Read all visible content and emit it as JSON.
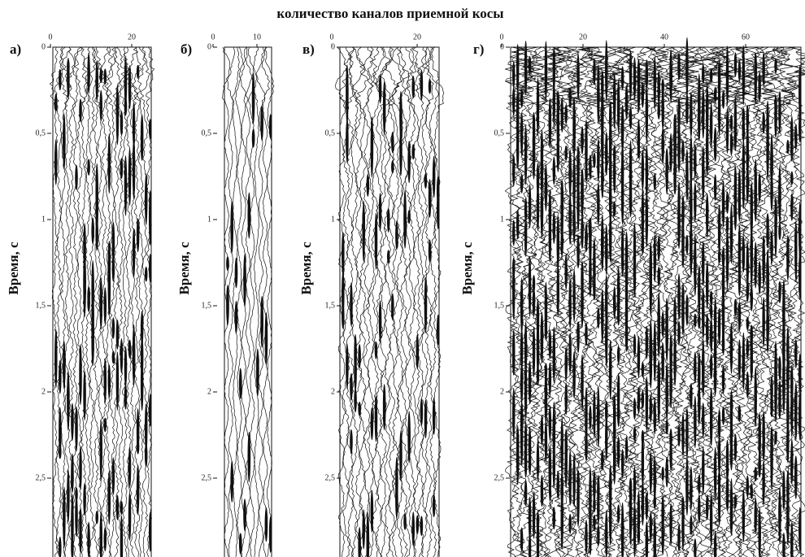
{
  "title": "количество каналов приемной косы",
  "panels": [
    {
      "label": "а)",
      "y_label": "Время, с",
      "x_ticks": [
        0,
        20
      ],
      "y_ticks": [
        0,
        {
          "value": 0.5,
          "label": "0,5"
        },
        1,
        {
          "value": 1.5,
          "label": "1,5"
        },
        2,
        {
          "value": 2.5,
          "label": "2,5"
        }
      ]
    },
    {
      "label": "б)",
      "y_label": "Время, с",
      "x_ticks": [
        0,
        10
      ],
      "y_ticks": [
        0,
        {
          "value": 0.5,
          "label": "0,5"
        },
        1,
        {
          "value": 1.5,
          "label": "1,5"
        },
        2,
        {
          "value": 2.5,
          "label": "2,5"
        }
      ]
    },
    {
      "label": "в)",
      "y_label": "Время, с",
      "x_ticks": [
        0,
        20
      ],
      "y_ticks": [
        0,
        {
          "value": 0.5,
          "label": "0,5"
        },
        1,
        {
          "value": 1.5,
          "label": "1,5"
        },
        2,
        {
          "value": 2.5,
          "label": "2,5"
        }
      ]
    },
    {
      "label": "г)",
      "y_label": "Время, с",
      "x_ticks": [
        0,
        20,
        40,
        60
      ],
      "y_ticks": [
        0,
        {
          "value": 0.5,
          "label": "0,5"
        },
        1,
        {
          "value": 1.5,
          "label": "1,5"
        },
        2,
        {
          "value": 2.5,
          "label": "2,5"
        }
      ]
    }
  ]
}
